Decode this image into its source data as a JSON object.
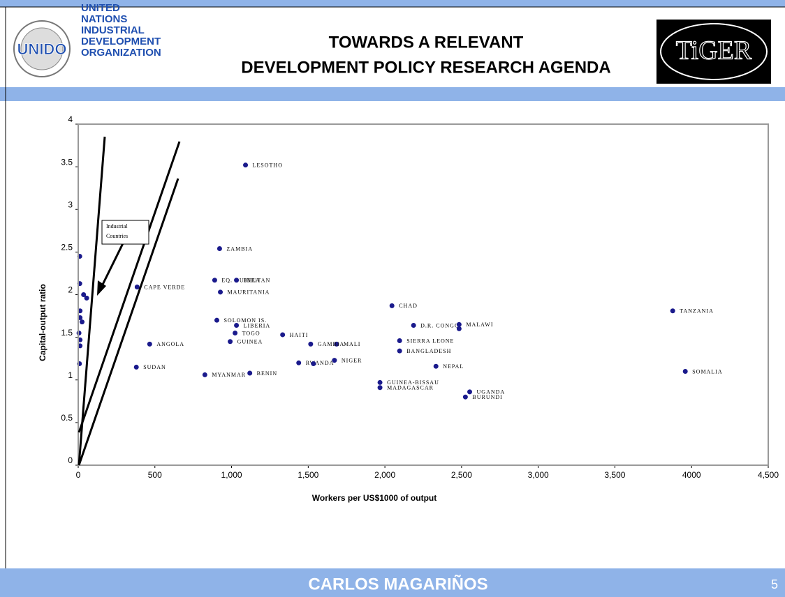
{
  "header": {
    "org": [
      "UNITED",
      "NATIONS",
      "INDUSTRIAL",
      "DEVELOPMENT",
      "ORGANIZATION"
    ],
    "logo_text": "UNIDO",
    "title": [
      "TOWARDS A RELEVANT",
      "DEVELOPMENT POLICY RESEARCH AGENDA"
    ],
    "tiger": "TiGER"
  },
  "footer": {
    "name": "CARLOS MAGARIÑOS",
    "page": "5"
  },
  "chart_data": {
    "type": "scatter",
    "xlabel": "Workers per US$1000 of output",
    "ylabel": "Capital-output ratio",
    "annotation": "Industrial Countries",
    "color": "#1a1a8c",
    "xlim": [
      0,
      4500
    ],
    "ylim": [
      0,
      4
    ],
    "xticks": [
      0,
      500,
      {
        "value": 1000,
        "label": "1,000"
      },
      {
        "value": 1500,
        "label": "1,500"
      },
      {
        "value": 2000,
        "label": "2,000"
      },
      {
        "value": 2500,
        "label": "2,500"
      },
      {
        "value": 3000,
        "label": "3,000"
      },
      {
        "value": 3500,
        "label": "3,500"
      },
      4000,
      {
        "value": 4500,
        "label": "4,500"
      }
    ],
    "yticks": [
      0,
      0.5,
      1,
      1.5,
      2,
      2.5,
      3,
      3.5,
      4
    ],
    "x": [
      1091,
      922,
      890,
      1032,
      927,
      384,
      904,
      1032,
      1023,
      1333,
      991,
      466,
      1685,
      1516,
      1438,
      1534,
      1671,
      1119,
      826,
      379,
      2046,
      2187,
      2096,
      2096,
      2333,
      2484,
      2484,
      1968,
      1968,
      2553,
      2525,
      3877,
      3959,
      10,
      10,
      35,
      55,
      12,
      12,
      25,
      5,
      12,
      12,
      8
    ],
    "y": [
      3.52,
      2.54,
      2.17,
      2.17,
      2.03,
      2.09,
      1.7,
      1.64,
      1.55,
      1.53,
      1.45,
      1.42,
      1.42,
      1.42,
      1.2,
      1.19,
      1.23,
      1.08,
      1.06,
      1.15,
      1.87,
      1.64,
      1.46,
      1.34,
      1.16,
      1.65,
      1.6,
      0.97,
      0.91,
      0.86,
      0.8,
      1.81,
      1.1,
      2.45,
      2.13,
      2.0,
      1.96,
      1.81,
      1.73,
      1.68,
      1.55,
      1.47,
      1.4,
      1.19
    ],
    "labels": [
      "LESOTHO",
      "ZAMBIA",
      "EQ. GUINEA",
      "BHUTAN",
      "MAURITANIA",
      "CAPE VERDE",
      "SOLOMON IS.",
      "LIBERIA",
      "TOGO",
      "HAITI",
      "GUINEA",
      "ANGOLA",
      "MALI",
      "GAMBIA",
      "RWANDA",
      null,
      "NIGER",
      "BENIN",
      "MYANMAR",
      "SUDAN",
      "CHAD",
      "D.R. CONGO",
      "SIERRA LEONE",
      "BANGLADESH",
      "NEPAL",
      "MALAWI",
      null,
      "GUINEA-BISSAU",
      "MADAGASCAR",
      "UGANDA",
      "BURUNDI",
      "TANZANIA",
      "SOMALIA",
      null,
      null,
      null,
      null,
      null,
      null,
      null,
      null,
      null,
      null,
      null
    ]
  }
}
